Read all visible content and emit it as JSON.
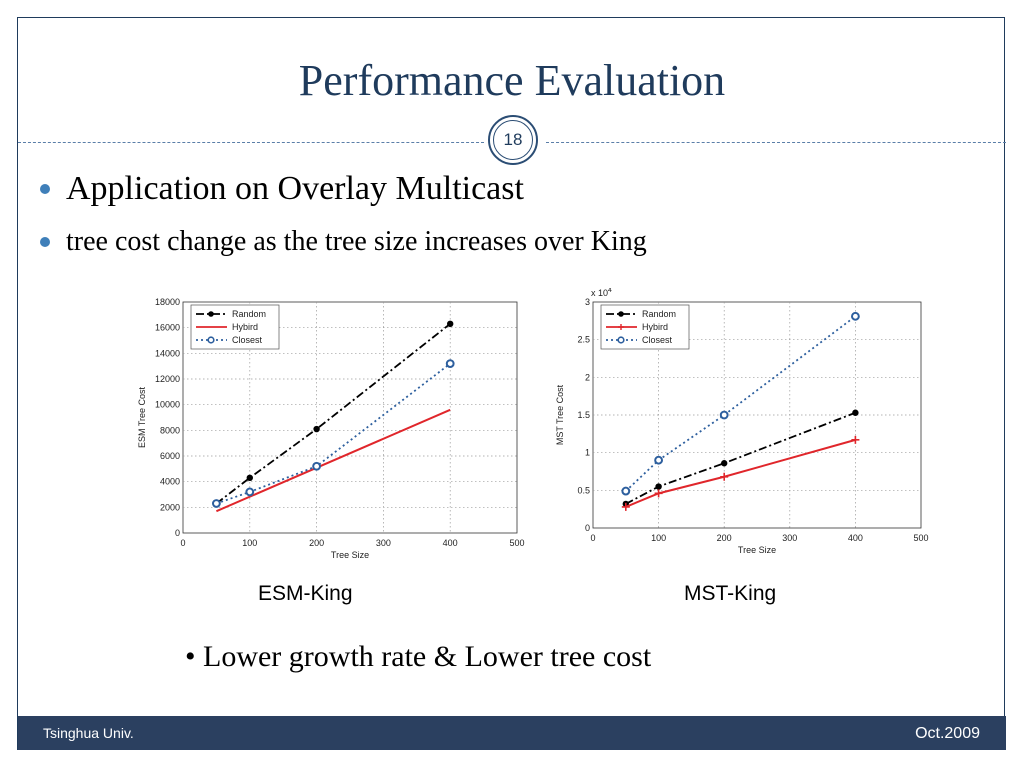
{
  "slide": {
    "title": "Performance Evaluation",
    "page_number": "18",
    "bullets": [
      "Application on Overlay Multicast",
      "tree cost change as the tree size increases over King"
    ],
    "captions": [
      "ESM-King",
      "MST-King"
    ],
    "note": "• Lower growth rate & Lower tree cost",
    "footer_left": "Tsinghua Univ.",
    "footer_right": "Oct.2009"
  },
  "colors": {
    "title": "#1f3b5c",
    "footer_bg": "#2b4060",
    "bullet_dot": "#3f7fb9",
    "random": "#000000",
    "hybird": "#e0262b",
    "closest": "#2d5f9e"
  },
  "chart_data": [
    {
      "type": "line",
      "title": "",
      "xlabel": "Tree Size",
      "ylabel": "ESM Tree Cost",
      "xlim": [
        0,
        500
      ],
      "ylim": [
        0,
        18000
      ],
      "xticks": [
        0,
        100,
        200,
        300,
        400,
        500
      ],
      "yticks": [
        0,
        2000,
        4000,
        6000,
        8000,
        10000,
        12000,
        14000,
        16000,
        18000
      ],
      "exponent_label": "",
      "grid": true,
      "legend": "top-left",
      "series": [
        {
          "name": "Random",
          "style": "dashdot",
          "marker": "dot",
          "x": [
            50,
            100,
            200,
            400
          ],
          "y": [
            2300,
            4300,
            8100,
            16300
          ]
        },
        {
          "name": "Hybird",
          "style": "solid",
          "marker": "none",
          "x": [
            50,
            400
          ],
          "y": [
            1700,
            9600
          ]
        },
        {
          "name": "Closest",
          "style": "dotted",
          "marker": "circle",
          "x": [
            50,
            100,
            200,
            400
          ],
          "y": [
            2300,
            3200,
            5200,
            13200
          ]
        }
      ]
    },
    {
      "type": "line",
      "title": "",
      "xlabel": "Tree Size",
      "ylabel": "MST Tree Cost",
      "xlim": [
        0,
        500
      ],
      "ylim": [
        0,
        3
      ],
      "xticks": [
        0,
        100,
        200,
        300,
        400,
        500
      ],
      "yticks": [
        0,
        0.5,
        1,
        1.5,
        2,
        2.5,
        3
      ],
      "exponent_label": "x 10",
      "exponent_power": "4",
      "grid": true,
      "legend": "top-left",
      "series": [
        {
          "name": "Random",
          "style": "dashdot",
          "marker": "dot",
          "x": [
            50,
            100,
            200,
            400
          ],
          "y": [
            0.32,
            0.55,
            0.86,
            1.53
          ]
        },
        {
          "name": "Hybird",
          "style": "solid",
          "marker": "plus",
          "x": [
            50,
            100,
            200,
            400
          ],
          "y": [
            0.28,
            0.46,
            0.68,
            1.17
          ]
        },
        {
          "name": "Closest",
          "style": "dotted",
          "marker": "circle",
          "x": [
            50,
            100,
            200,
            400
          ],
          "y": [
            0.49,
            0.9,
            1.5,
            2.81
          ]
        }
      ]
    }
  ]
}
